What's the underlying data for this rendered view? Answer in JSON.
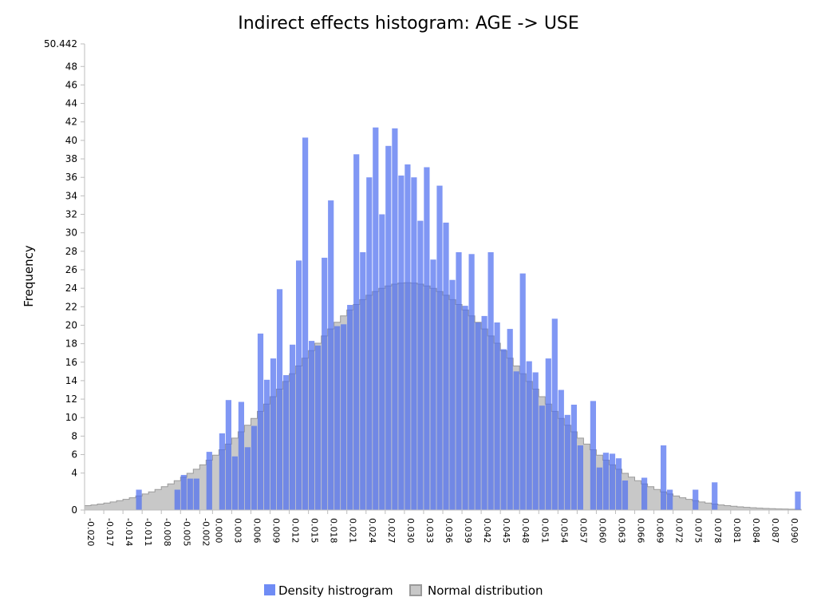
{
  "chart_data": {
    "type": "bar",
    "title": "Indirect effects histogram: AGE -> USE",
    "xlabel": "",
    "ylabel": "Frequency",
    "ylim": [
      0,
      50.442
    ],
    "y_ticks": [
      "0",
      "4",
      "6",
      "8",
      "10",
      "12",
      "14",
      "16",
      "18",
      "20",
      "22",
      "24",
      "26",
      "28",
      "30",
      "32",
      "34",
      "36",
      "38",
      "40",
      "42",
      "44",
      "46",
      "48",
      "50.442"
    ],
    "x_ticks": [
      "-0.020",
      "-0.017",
      "-0.014",
      "-0.011",
      "-0.008",
      "-0.005",
      "-0.002",
      "0.000",
      "0.003",
      "0.006",
      "0.009",
      "0.012",
      "0.015",
      "0.018",
      "0.021",
      "0.024",
      "0.027",
      "0.030",
      "0.033",
      "0.036",
      "0.039",
      "0.042",
      "0.045",
      "0.048",
      "0.051",
      "0.054",
      "0.057",
      "0.060",
      "0.063",
      "0.066",
      "0.069",
      "0.072",
      "0.075",
      "0.078",
      "0.081",
      "0.084",
      "0.087",
      "0.090"
    ],
    "x_range": [
      -0.02,
      0.092
    ],
    "bin_width": 0.001,
    "grid": false,
    "legend_placement": "bottom",
    "colors": {
      "histogram": "#6f8cf5",
      "normal": "#c8c8c8",
      "normal_edge": "#9a9a9a",
      "overlap": "#5f6ecb"
    },
    "series": [
      {
        "name": "Density histrogram",
        "x": [
          -0.0115,
          -0.0055,
          -0.0045,
          -0.0035,
          -0.0025,
          -0.0005,
          0.0015,
          0.0025,
          0.0035,
          0.0045,
          0.0055,
          0.0065,
          0.0075,
          0.0085,
          0.0095,
          0.0105,
          0.0115,
          0.0125,
          0.0135,
          0.0145,
          0.0155,
          0.0165,
          0.0175,
          0.0185,
          0.0195,
          0.0205,
          0.0215,
          0.0225,
          0.0235,
          0.0245,
          0.0255,
          0.0265,
          0.0275,
          0.0285,
          0.0295,
          0.0305,
          0.0315,
          0.0325,
          0.0335,
          0.0345,
          0.0355,
          0.0365,
          0.0375,
          0.0385,
          0.0395,
          0.0405,
          0.0415,
          0.0425,
          0.0435,
          0.0445,
          0.0455,
          0.0465,
          0.0475,
          0.0485,
          0.0495,
          0.0505,
          0.0515,
          0.0525,
          0.0535,
          0.0545,
          0.0555,
          0.0565,
          0.0575,
          0.0595,
          0.0605,
          0.0615,
          0.0625,
          0.0635,
          0.0645,
          0.0675,
          0.0705,
          0.0715,
          0.0755,
          0.0785,
          0.0915
        ],
        "values": [
          2.2,
          2.2,
          3.8,
          3.4,
          3.4,
          6.3,
          8.3,
          11.9,
          5.8,
          11.7,
          6.8,
          9.1,
          19.1,
          14.1,
          16.4,
          23.9,
          14.6,
          17.9,
          27.0,
          40.3,
          18.3,
          17.8,
          27.3,
          33.5,
          19.9,
          20.1,
          22.2,
          38.5,
          27.9,
          36.0,
          41.4,
          32.0,
          39.4,
          41.3,
          36.2,
          37.4,
          36.0,
          31.3,
          37.1,
          27.1,
          35.1,
          31.1,
          24.9,
          27.9,
          22.1,
          27.7,
          20.3,
          21.0,
          27.9,
          20.3,
          17.4,
          19.6,
          15.0,
          25.6,
          16.1,
          14.9,
          11.3,
          16.4,
          20.7,
          13.0,
          10.3,
          11.4,
          7.0,
          11.8,
          4.6,
          6.2,
          6.1,
          5.6,
          3.2,
          3.5,
          7.0,
          2.2,
          2.2,
          3.0,
          2.0
        ]
      },
      {
        "name": "Normal distribution",
        "mean": 0.0305,
        "sd": 0.0178,
        "peak": 24.6
      }
    ]
  }
}
